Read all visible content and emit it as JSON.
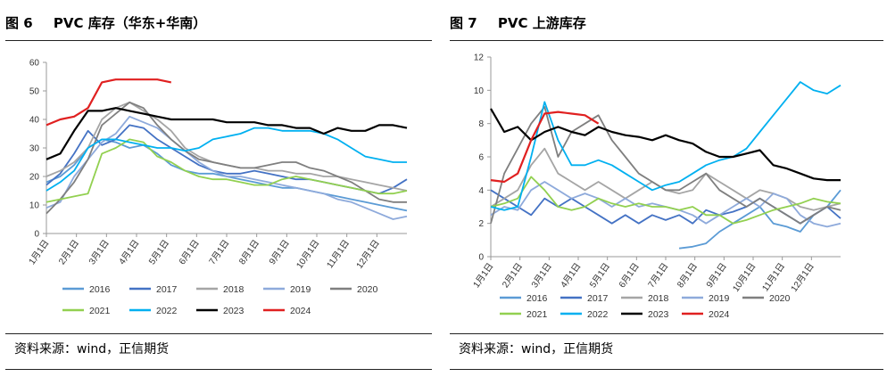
{
  "source_text": "资料来源：wind，正信期货",
  "months": [
    "1月1日",
    "2月1日",
    "3月1日",
    "4月1日",
    "5月1日",
    "6月1日",
    "7月1日",
    "8月1日",
    "9月1日",
    "10月1日",
    "11月1日",
    "12月1日"
  ],
  "colors": {
    "2016": "#5b9bd5",
    "2017": "#4472c4",
    "2018": "#a5a5a5",
    "2019": "#8eaadb",
    "2020": "#7f7f7f",
    "2021": "#92d050",
    "2022": "#00b0f0",
    "2023": "#000000",
    "2024": "#e02020"
  },
  "chart_data": [
    {
      "type": "line",
      "fig_label": "图 6",
      "title": "PVC 库存（华东+华南）",
      "ylim": [
        0,
        60
      ],
      "yticks": [
        0,
        10,
        20,
        30,
        40,
        50,
        60
      ],
      "x_unit": "week_of_year",
      "xlim": [
        1,
        53
      ],
      "legend_rows": [
        [
          "2016",
          "2017",
          "2018",
          "2019",
          "2020"
        ],
        [
          "2021",
          "2022",
          "2023",
          "2024"
        ]
      ],
      "series": [
        {
          "name": "2016",
          "x": [
            1,
            3,
            5,
            7,
            9,
            11,
            13,
            15,
            17,
            19,
            21,
            23,
            25,
            27,
            29,
            31,
            33,
            35,
            37,
            39,
            41,
            43,
            45,
            47,
            49,
            51,
            53
          ],
          "y": [
            18,
            20,
            24,
            30,
            33,
            32,
            30,
            31,
            28,
            24,
            22,
            21,
            21,
            20,
            19,
            18,
            17,
            16,
            16,
            15,
            14,
            13,
            12,
            11,
            10,
            9,
            8
          ]
        },
        {
          "name": "2017",
          "x": [
            1,
            3,
            5,
            7,
            9,
            11,
            13,
            15,
            17,
            19,
            21,
            23,
            25,
            27,
            29,
            31,
            33,
            35,
            37,
            39,
            41,
            43,
            45,
            47,
            49,
            51,
            53
          ],
          "y": [
            17,
            21,
            28,
            36,
            31,
            33,
            38,
            37,
            33,
            30,
            27,
            24,
            22,
            21,
            21,
            22,
            21,
            20,
            19,
            19,
            18,
            17,
            16,
            15,
            14,
            16,
            19
          ]
        },
        {
          "name": "2018",
          "x": [
            1,
            3,
            5,
            7,
            9,
            11,
            13,
            15,
            17,
            19,
            21,
            23,
            25,
            27,
            29,
            31,
            33,
            35,
            37,
            39,
            41,
            43,
            45,
            47,
            49,
            51,
            53
          ],
          "y": [
            20,
            22,
            25,
            30,
            40,
            44,
            46,
            43,
            40,
            36,
            30,
            27,
            25,
            24,
            23,
            23,
            22,
            22,
            21,
            21,
            20,
            20,
            19,
            18,
            17,
            16,
            15
          ]
        },
        {
          "name": "2019",
          "x": [
            1,
            3,
            5,
            7,
            9,
            11,
            13,
            15,
            17,
            19,
            21,
            23,
            25,
            27,
            29,
            31,
            33,
            35,
            37,
            39,
            41,
            43,
            45,
            47,
            49,
            51,
            53
          ],
          "y": [
            9,
            11,
            20,
            26,
            32,
            35,
            41,
            39,
            37,
            33,
            29,
            25,
            22,
            20,
            20,
            19,
            18,
            17,
            16,
            15,
            14,
            12,
            11,
            9,
            7,
            5,
            6
          ]
        },
        {
          "name": "2020",
          "x": [
            1,
            3,
            5,
            7,
            9,
            11,
            13,
            15,
            17,
            19,
            21,
            23,
            25,
            27,
            29,
            31,
            33,
            35,
            37,
            39,
            41,
            43,
            45,
            47,
            49,
            51,
            53
          ],
          "y": [
            7,
            12,
            18,
            26,
            38,
            42,
            46,
            44,
            38,
            33,
            29,
            26,
            25,
            24,
            23,
            23,
            24,
            25,
            25,
            23,
            22,
            20,
            18,
            15,
            12,
            11,
            11
          ]
        },
        {
          "name": "2021",
          "x": [
            1,
            3,
            5,
            7,
            9,
            11,
            13,
            15,
            17,
            19,
            21,
            23,
            25,
            27,
            29,
            31,
            33,
            35,
            37,
            39,
            41,
            43,
            45,
            47,
            49,
            51,
            53
          ],
          "y": [
            11,
            12,
            13,
            14,
            28,
            30,
            33,
            32,
            27,
            25,
            22,
            20,
            19,
            19,
            18,
            17,
            17,
            19,
            20,
            19,
            18,
            17,
            16,
            15,
            14,
            14,
            15
          ]
        },
        {
          "name": "2022",
          "x": [
            1,
            3,
            5,
            7,
            9,
            11,
            13,
            15,
            17,
            19,
            21,
            23,
            25,
            27,
            29,
            31,
            33,
            35,
            37,
            39,
            41,
            43,
            45,
            47,
            49,
            51,
            53
          ],
          "y": [
            15,
            18,
            22,
            30,
            33,
            33,
            32,
            31,
            30,
            30,
            29,
            30,
            33,
            34,
            35,
            37,
            37,
            36,
            36,
            36,
            35,
            33,
            30,
            27,
            26,
            25,
            25
          ]
        },
        {
          "name": "2023",
          "x": [
            1,
            3,
            5,
            7,
            9,
            11,
            13,
            15,
            17,
            19,
            21,
            23,
            25,
            27,
            29,
            31,
            33,
            35,
            37,
            39,
            41,
            43,
            45,
            47,
            49,
            51,
            53
          ],
          "y": [
            26,
            28,
            36,
            43,
            43,
            44,
            43,
            42,
            41,
            40,
            40,
            40,
            40,
            39,
            39,
            39,
            38,
            38,
            37,
            37,
            35,
            37,
            36,
            36,
            38,
            38,
            37
          ]
        },
        {
          "name": "2024",
          "x": [
            1,
            3,
            5,
            7,
            9,
            11,
            13,
            15,
            17,
            19,
            21
          ],
          "y": [
            38,
            40,
            41,
            44,
            53,
            54,
            54,
            54,
            54,
            53,
            null
          ]
        }
      ]
    },
    {
      "type": "line",
      "fig_label": "图 7",
      "title": "PVC 上游库存",
      "ylim": [
        0,
        12
      ],
      "yticks": [
        0,
        2,
        4,
        6,
        8,
        10,
        12
      ],
      "x_unit": "week_of_year",
      "xlim": [
        1,
        53
      ],
      "legend_rows": [
        [
          "2016",
          "2017",
          "2018",
          "2019",
          "2020"
        ],
        [
          "2021",
          "2022",
          "2023",
          "2024"
        ]
      ],
      "series": [
        {
          "name": "2016",
          "x": [
            1,
            3,
            5,
            7,
            9,
            11,
            13,
            15,
            17,
            19,
            21,
            23,
            25,
            27,
            29,
            31,
            33,
            35,
            37,
            39,
            41,
            43,
            45,
            47,
            49,
            51,
            53
          ],
          "y": [
            null,
            null,
            null,
            null,
            null,
            null,
            null,
            null,
            null,
            null,
            null,
            null,
            null,
            null,
            0.5,
            0.6,
            0.8,
            1.5,
            2.0,
            2.5,
            3.0,
            2.0,
            1.8,
            1.5,
            2.5,
            3.0,
            4.0
          ]
        },
        {
          "name": "2017",
          "x": [
            1,
            3,
            5,
            7,
            9,
            11,
            13,
            15,
            17,
            19,
            21,
            23,
            25,
            27,
            29,
            31,
            33,
            35,
            37,
            39,
            41,
            43,
            45,
            47,
            49,
            51,
            53
          ],
          "y": [
            4.0,
            3.5,
            3.0,
            2.5,
            3.5,
            3.0,
            3.5,
            3.0,
            2.5,
            2.0,
            2.5,
            2.0,
            2.5,
            2.2,
            2.5,
            2.0,
            2.8,
            2.5,
            2.7,
            3.0,
            3.5,
            3.0,
            2.5,
            2.0,
            2.5,
            3.0,
            2.3
          ]
        },
        {
          "name": "2018",
          "x": [
            1,
            3,
            5,
            7,
            9,
            11,
            13,
            15,
            17,
            19,
            21,
            23,
            25,
            27,
            29,
            31,
            33,
            35,
            37,
            39,
            41,
            43,
            45,
            47,
            49,
            51,
            53
          ],
          "y": [
            3.0,
            3.5,
            4.0,
            5.5,
            6.5,
            5.0,
            4.5,
            4.0,
            4.5,
            4.0,
            3.5,
            4.0,
            4.5,
            4.0,
            3.8,
            4.0,
            5.0,
            4.5,
            4.0,
            3.5,
            4.0,
            3.8,
            3.5,
            3.0,
            2.8,
            3.0,
            3.2
          ]
        },
        {
          "name": "2019",
          "x": [
            1,
            3,
            5,
            7,
            9,
            11,
            13,
            15,
            17,
            19,
            21,
            23,
            25,
            27,
            29,
            31,
            33,
            35,
            37,
            39,
            41,
            43,
            45,
            47,
            49,
            51,
            53
          ],
          "y": [
            2.5,
            3.0,
            2.8,
            4.0,
            4.5,
            4.0,
            3.5,
            3.8,
            3.5,
            3.0,
            3.5,
            3.0,
            3.2,
            3.0,
            2.8,
            2.5,
            2.0,
            2.5,
            3.0,
            3.5,
            3.0,
            3.8,
            3.5,
            2.5,
            2.0,
            1.8,
            2.0
          ]
        },
        {
          "name": "2020",
          "x": [
            1,
            3,
            5,
            7,
            9,
            11,
            13,
            15,
            17,
            19,
            21,
            23,
            25,
            27,
            29,
            31,
            33,
            35,
            37,
            39,
            41,
            43,
            45,
            47,
            49,
            51,
            53
          ],
          "y": [
            2.0,
            5.0,
            6.5,
            8.0,
            9.0,
            6.0,
            7.5,
            8.0,
            8.5,
            7.0,
            6.0,
            5.0,
            4.5,
            4.0,
            4.0,
            4.5,
            5.0,
            4.0,
            3.5,
            3.0,
            3.5,
            3.0,
            2.5,
            2.0,
            2.5,
            3.0,
            2.8
          ]
        },
        {
          "name": "2021",
          "x": [
            1,
            3,
            5,
            7,
            9,
            11,
            13,
            15,
            17,
            19,
            21,
            23,
            25,
            27,
            29,
            31,
            33,
            35,
            37,
            39,
            41,
            43,
            45,
            47,
            49,
            51,
            53
          ],
          "y": [
            3.0,
            3.2,
            3.5,
            4.8,
            4.0,
            3.0,
            2.8,
            3.0,
            3.5,
            3.2,
            3.0,
            3.2,
            3.0,
            3.0,
            2.8,
            3.0,
            2.5,
            2.5,
            2.0,
            2.2,
            2.5,
            2.8,
            3.0,
            3.2,
            3.5,
            3.3,
            3.2
          ]
        },
        {
          "name": "2022",
          "x": [
            1,
            3,
            5,
            7,
            9,
            11,
            13,
            15,
            17,
            19,
            21,
            23,
            25,
            27,
            29,
            31,
            33,
            35,
            37,
            39,
            41,
            43,
            45,
            47,
            49,
            51,
            53
          ],
          "y": [
            3.0,
            2.8,
            3.0,
            6.0,
            9.3,
            7.0,
            5.5,
            5.5,
            5.8,
            5.5,
            5.0,
            4.5,
            4.0,
            4.3,
            4.5,
            5.0,
            5.5,
            5.8,
            6.0,
            6.5,
            7.5,
            8.5,
            9.5,
            10.5,
            10.0,
            9.8,
            10.3
          ]
        },
        {
          "name": "2023",
          "x": [
            1,
            3,
            5,
            7,
            9,
            11,
            13,
            15,
            17,
            19,
            21,
            23,
            25,
            27,
            29,
            31,
            33,
            35,
            37,
            39,
            41,
            43,
            45,
            47,
            49,
            51,
            53
          ],
          "y": [
            8.9,
            7.5,
            7.8,
            7.0,
            7.5,
            7.8,
            7.5,
            7.3,
            7.8,
            7.5,
            7.3,
            7.2,
            7.0,
            7.3,
            7.0,
            6.8,
            6.3,
            6.0,
            6.0,
            6.2,
            6.4,
            5.5,
            5.3,
            5.0,
            4.7,
            4.6,
            4.6
          ]
        },
        {
          "name": "2024",
          "x": [
            1,
            3,
            5,
            7,
            9,
            11,
            13,
            15,
            17
          ],
          "y": [
            4.6,
            4.5,
            5.0,
            7.0,
            8.6,
            8.7,
            8.6,
            8.5,
            8.0
          ]
        }
      ]
    }
  ]
}
